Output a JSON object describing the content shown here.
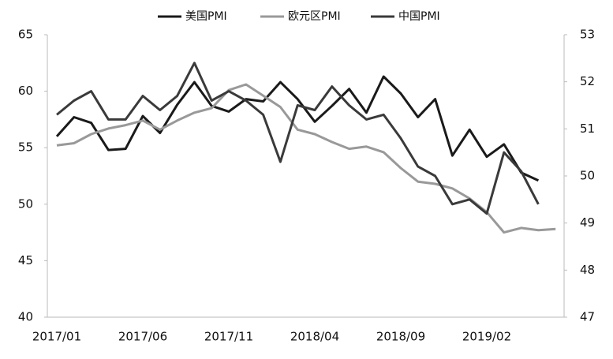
{
  "chart_data": {
    "type": "line",
    "categories": [
      "2017/01",
      null,
      null,
      null,
      null,
      "2017/06",
      null,
      null,
      null,
      null,
      "2017/11",
      null,
      null,
      null,
      null,
      "2018/04",
      null,
      null,
      null,
      null,
      "2018/09",
      null,
      null,
      null,
      null,
      "2019/02",
      null,
      null,
      null,
      null
    ],
    "series": [
      {
        "name": "美国PMI",
        "color": "#1a1a1a",
        "values": [
          56.0,
          57.7,
          57.2,
          54.8,
          54.9,
          57.8,
          56.3,
          58.8,
          60.8,
          58.7,
          58.2,
          59.3,
          59.1,
          60.8,
          59.3,
          57.3,
          58.7,
          60.2,
          58.1,
          61.3,
          59.8,
          57.7,
          59.3,
          54.3,
          56.6,
          54.2,
          55.3,
          52.8,
          52.1,
          null
        ]
      },
      {
        "name": "欧元区PMI",
        "color": "#999999",
        "values": [
          55.2,
          55.4,
          56.2,
          56.7,
          57.0,
          57.4,
          56.6,
          57.4,
          58.1,
          58.5,
          60.1,
          60.6,
          59.6,
          58.6,
          56.6,
          56.2,
          55.5,
          54.9,
          55.1,
          54.6,
          53.2,
          52.0,
          51.8,
          51.4,
          50.5,
          49.3,
          47.5,
          47.9,
          47.7,
          47.8
        ]
      },
      {
        "name": "中国PMI",
        "color": "#3a3a3a",
        "axis": "y2",
        "values": [
          51.3,
          51.6,
          51.8,
          51.2,
          51.2,
          51.7,
          51.4,
          51.7,
          52.4,
          51.6,
          51.8,
          51.6,
          51.3,
          50.3,
          51.5,
          51.4,
          51.9,
          51.5,
          51.2,
          51.3,
          50.8,
          50.2,
          50.0,
          49.4,
          49.5,
          49.2,
          50.5,
          50.1,
          49.4,
          null
        ]
      }
    ],
    "ylim": [
      40,
      65
    ],
    "yticks": [
      40,
      45,
      50,
      55,
      60,
      65
    ],
    "y2lim": [
      47,
      53
    ],
    "y2ticks": [
      47,
      48,
      49,
      50,
      51,
      52,
      53
    ],
    "legend": "top"
  }
}
